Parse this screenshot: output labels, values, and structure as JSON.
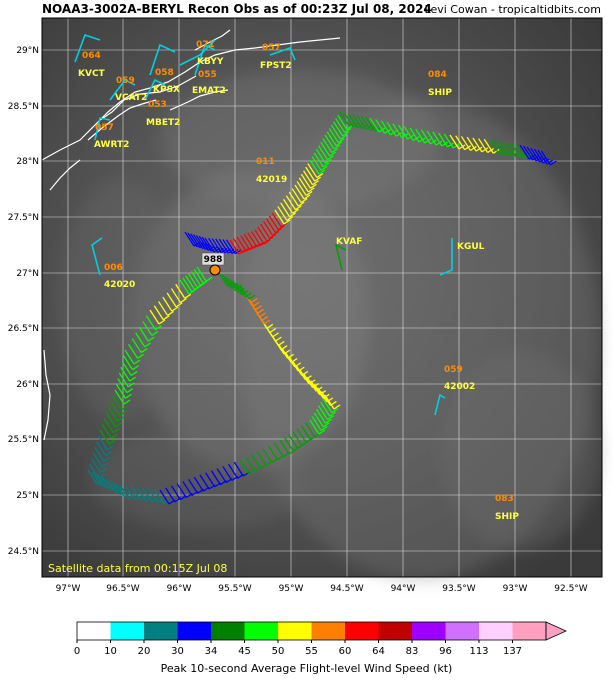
{
  "title": "NOAA3-3002A-BERYL Recon Obs as of 00:23Z Jul 08, 2024",
  "credit": "Levi Cowan - tropicaltidbits.com",
  "satellite_note": "Satellite data from 00:15Z Jul 08",
  "pressure_label": "988",
  "lat_labels": [
    "29°N",
    "28.5°N",
    "28°N",
    "27.5°N",
    "27°N",
    "26.5°N",
    "26°N",
    "25.5°N",
    "25°N",
    "24.5°N"
  ],
  "lon_labels": [
    "97°W",
    "96.5°W",
    "96°W",
    "95.5°W",
    "95°W",
    "94.5°W",
    "94°W",
    "93.5°W",
    "93°W",
    "92.5°W"
  ],
  "stations": [
    {
      "id": "KVCT",
      "value": "064"
    },
    {
      "id": "KBYY",
      "value": "071"
    },
    {
      "id": "FPST2",
      "value": "057"
    },
    {
      "id": "VCAT2",
      "value": "059"
    },
    {
      "id": "KPSX",
      "value": "058"
    },
    {
      "id": "EMAT2",
      "value": "055"
    },
    {
      "id": "MBET2",
      "value": "053"
    },
    {
      "id": "AWRT2",
      "value": "057"
    },
    {
      "id": "SHIP",
      "value": "084"
    },
    {
      "id": "42019",
      "value": "011"
    },
    {
      "id": "KVAF",
      "value": ""
    },
    {
      "id": "KGUL",
      "value": ""
    },
    {
      "id": "42020",
      "value": "006"
    },
    {
      "id": "42002",
      "value": "059"
    },
    {
      "id": "SHIP",
      "value": "083"
    }
  ],
  "colorbar": {
    "title": "Peak 10-second Average Flight-level Wind Speed (kt)",
    "ticks": [
      "0",
      "10",
      "20",
      "30",
      "34",
      "45",
      "50",
      "55",
      "60",
      "64",
      "83",
      "96",
      "113",
      "137"
    ],
    "colors": [
      "#ffffff",
      "#00ffff",
      "#008080",
      "#0000ff",
      "#008000",
      "#00ff00",
      "#ffff00",
      "#ff8000",
      "#ff0000",
      "#c00000",
      "#a000ff",
      "#d070ff",
      "#ffd0ff",
      "#ffa0c0"
    ]
  }
}
